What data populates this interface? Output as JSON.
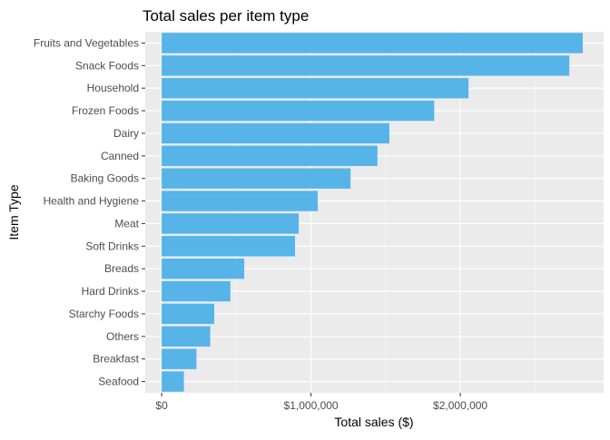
{
  "chart_data": {
    "type": "bar",
    "orientation": "horizontal",
    "title": "Total sales per item type",
    "xlabel": "Total sales ($)",
    "ylabel": "Item Type",
    "categories": [
      "Fruits and Vegetables",
      "Snack Foods",
      "Household",
      "Frozen Foods",
      "Dairy",
      "Canned",
      "Baking Goods",
      "Health and Hygiene",
      "Meat",
      "Soft Drinks",
      "Breads",
      "Hard Drinks",
      "Starchy Foods",
      "Others",
      "Breakfast",
      "Seafood"
    ],
    "values": [
      2820000,
      2730000,
      2055000,
      1825000,
      1525000,
      1445000,
      1265000,
      1045000,
      918000,
      893000,
      553000,
      460000,
      352000,
      325000,
      233000,
      149000
    ],
    "xlim": [
      -110000,
      2960000
    ],
    "xticks": [
      0,
      1000000,
      2000000
    ],
    "xtick_labels": [
      "$0",
      "$1,000,000",
      "$2,000,000"
    ],
    "grid": true,
    "bar_color": "#56B4E9",
    "panel_color": "#EBEBEB",
    "grid_color": "#FFFFFF"
  }
}
